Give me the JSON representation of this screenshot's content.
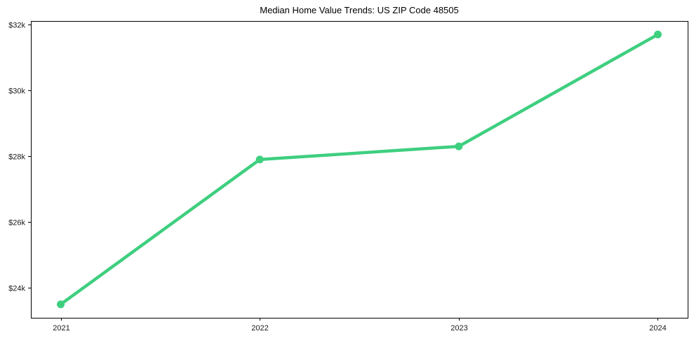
{
  "colors": {
    "line": "#3ecf7f",
    "axis": "#000000",
    "background": "#ffffff",
    "text": "#000000"
  },
  "chart_data": {
    "type": "line",
    "title": "Median Home Value Trends: US ZIP Code 48505",
    "xlabel": "",
    "ylabel": "",
    "x": [
      2021,
      2022,
      2023,
      2024
    ],
    "x_tick_labels": [
      "2021",
      "2022",
      "2023",
      "2024"
    ],
    "values": [
      23500,
      27900,
      28300,
      31700
    ],
    "y_ticks": [
      24000,
      26000,
      28000,
      30000,
      32000
    ],
    "y_tick_labels": [
      "$24k",
      "$26k",
      "$28k",
      "$30k",
      "$32k"
    ],
    "xlim": [
      2020.85,
      2024.15
    ],
    "ylim": [
      23090,
      32110
    ],
    "grid": false,
    "legend": "none",
    "marker": "circle",
    "marker_radius": 5.5,
    "line_width": 4.5
  }
}
